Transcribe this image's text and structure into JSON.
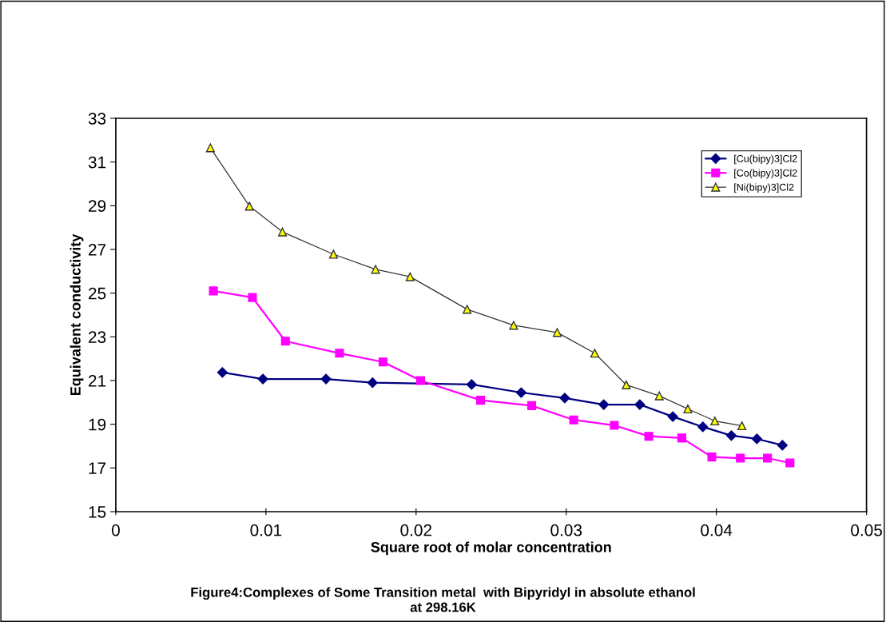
{
  "chart_data": {
    "type": "line",
    "xlabel": "Square root of molar concentration",
    "ylabel": "Equivalent conductivity",
    "annotations": [
      "Figure4:Complexes of Some Transition metal  with Bipyridyl in absolute ethanol\nat 298.16K"
    ],
    "xlim": [
      0,
      0.05
    ],
    "xticks": [
      0,
      0.01,
      0.02,
      0.03,
      0.04,
      0.05
    ],
    "ylim": [
      15,
      33
    ],
    "yticks": [
      15,
      17,
      19,
      21,
      23,
      25,
      27,
      29,
      31,
      33
    ],
    "grid": false,
    "legend": "top right",
    "line_style": "solid",
    "series": [
      {
        "name": "[Cu(bipy)3]Cl2",
        "color": "#000080",
        "marker": "diamond",
        "x": [
          0.0071,
          0.0098,
          0.014,
          0.0171,
          0.0237,
          0.027,
          0.0299,
          0.0325,
          0.0349,
          0.0371,
          0.0391,
          0.041,
          0.0427,
          0.0444
        ],
        "values": [
          21.37,
          21.07,
          21.07,
          20.9,
          20.82,
          20.45,
          20.2,
          19.9,
          19.9,
          19.35,
          18.88,
          18.48,
          18.33,
          18.04
        ]
      },
      {
        "name": "[Co(bipy)3]Cl2",
        "color": "#ff00ff",
        "marker": "square",
        "x": [
          0.0065,
          0.0091,
          0.0113,
          0.0149,
          0.0178,
          0.0203,
          0.0243,
          0.0277,
          0.0305,
          0.0332,
          0.0355,
          0.0377,
          0.0397,
          0.0416,
          0.0434,
          0.0449
        ],
        "values": [
          25.1,
          24.8,
          22.8,
          22.25,
          21.85,
          21.0,
          20.1,
          19.85,
          19.2,
          18.95,
          18.45,
          18.37,
          17.5,
          17.45,
          17.45,
          17.23
        ]
      },
      {
        "name": "[Ni(bipy)3]Cl2",
        "color": "#333333",
        "marker": "triangle",
        "x": [
          0.0063,
          0.0089,
          0.0111,
          0.0145,
          0.0173,
          0.0196,
          0.0234,
          0.0265,
          0.0294,
          0.0319,
          0.034,
          0.0362,
          0.0381,
          0.0399,
          0.0417
        ],
        "values": [
          31.65,
          28.98,
          27.8,
          26.78,
          26.09,
          25.75,
          24.26,
          23.53,
          23.2,
          22.25,
          20.8,
          20.3,
          19.7,
          19.15,
          18.93
        ]
      }
    ]
  }
}
